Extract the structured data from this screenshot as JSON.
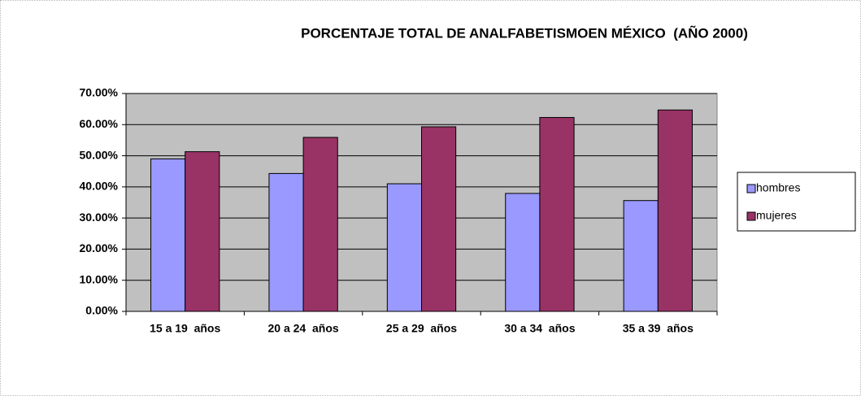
{
  "chart_data": {
    "type": "bar",
    "title": "PORCENTAJE TOTAL DE ANALFABETISMOEN MÉXICO  (AÑO 2000)",
    "categories": [
      "15 a 19  años",
      "20 a 24  años",
      "25 a 29  años",
      "30 a 34  años",
      "35 a 39  años"
    ],
    "series": [
      {
        "name": "hombres",
        "color": "#9999ff",
        "values": [
          49.0,
          44.3,
          41.0,
          37.9,
          35.6
        ]
      },
      {
        "name": "mujeres",
        "color": "#993366",
        "values": [
          51.3,
          55.9,
          59.3,
          62.3,
          64.7
        ]
      }
    ],
    "ylim": [
      0,
      70
    ],
    "yticks": [
      {
        "value": 0,
        "label": "0.00%"
      },
      {
        "value": 10,
        "label": "10.00%"
      },
      {
        "value": 20,
        "label": "20.00%"
      },
      {
        "value": 30,
        "label": "30.00%"
      },
      {
        "value": 40,
        "label": "40.00%"
      },
      {
        "value": 50,
        "label": "50.00%"
      },
      {
        "value": 60,
        "label": "60.00%"
      },
      {
        "value": 70,
        "label": "70.00%"
      }
    ],
    "grid": true,
    "legend": "right",
    "plot_background": "#c0c0c0"
  }
}
